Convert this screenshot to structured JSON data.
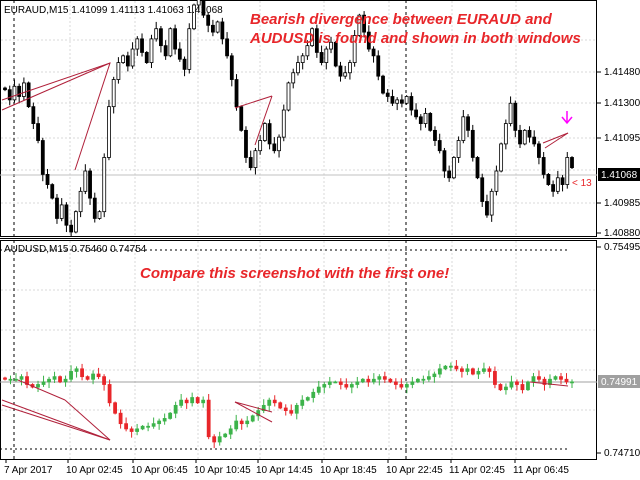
{
  "top_panel": {
    "symbol": "EURAUD,M15",
    "ohlc": "1.41099 1.41113 1.41063 1.41068",
    "annotation_lines": [
      "Bearish divergence between EURAUD and",
      "AUDUSD is found and shown in both windows"
    ],
    "price_labels": [
      "1.41480",
      "1.41300",
      "1.41095",
      "1.40985",
      "1.40880"
    ],
    "current_price": "1.41068",
    "small_label": "< 13",
    "arrow_color": "#ff00ff"
  },
  "bottom_panel": {
    "symbol": "AUDUSD,M15",
    "ohlc": "0.75460 0.74754",
    "annotation": "Compare this screenshot with the first one!",
    "price_labels": [
      "0.75495",
      "0.74710"
    ],
    "current_price": "0.74991"
  },
  "time_axis": [
    "7 Apr 2017",
    "10 Apr 02:45",
    "10 Apr 06:45",
    "10 Apr 10:45",
    "10 Apr 14:45",
    "10 Apr 18:45",
    "10 Apr 22:45",
    "11 Apr 02:45",
    "11 Apr 06:45"
  ],
  "colors": {
    "up_candle": "#3cb34a",
    "down_candle": "#e8262a",
    "divergence_line": "#b0203a",
    "annotation": "#e8262a"
  },
  "chart_data": [
    {
      "type": "candlestick",
      "title": "EURAUD,M15",
      "ylim": [
        1.4088,
        1.4155
      ],
      "close": [
        1.413,
        1.4127,
        1.4131,
        1.4128,
        1.4132,
        1.4125,
        1.412,
        1.4115,
        1.4105,
        1.4102,
        1.4098,
        1.4092,
        1.4096,
        1.409,
        1.4088,
        1.4094,
        1.41,
        1.4106,
        1.4098,
        1.4092,
        1.4094,
        1.411,
        1.4125,
        1.4133,
        1.4138,
        1.414,
        1.4137,
        1.4142,
        1.4145,
        1.4141,
        1.4138,
        1.4145,
        1.4148,
        1.4143,
        1.414,
        1.4148,
        1.4142,
        1.4139,
        1.4136,
        1.4148,
        1.4155,
        1.4162,
        1.4152,
        1.4149,
        1.4147,
        1.415,
        1.4145,
        1.414,
        1.4133,
        1.4125,
        1.4118,
        1.411,
        1.4107,
        1.4112,
        1.4115,
        1.412,
        1.4114,
        1.4112,
        1.4116,
        1.4124,
        1.4132,
        1.4135,
        1.4138,
        1.414,
        1.4143,
        1.4148,
        1.4141,
        1.4138,
        1.4142,
        1.4144,
        1.4137,
        1.4134,
        1.4135,
        1.4138,
        1.4146,
        1.4152,
        1.4147,
        1.4142,
        1.414,
        1.4134,
        1.4129,
        1.4128,
        1.4126,
        1.4127,
        1.4126,
        1.4128,
        1.4124,
        1.4122,
        1.412,
        1.4123,
        1.4118,
        1.4115,
        1.4112,
        1.4106,
        1.4104,
        1.411,
        1.4115,
        1.4122,
        1.4118,
        1.411,
        1.4104,
        1.4097,
        1.4093,
        1.41,
        1.4106,
        1.4114,
        1.412,
        1.4126,
        1.4118,
        1.4114,
        1.4118,
        1.4116,
        1.4114,
        1.411,
        1.4105,
        1.4102,
        1.41,
        1.4104,
        1.4102,
        1.411,
        1.4107
      ]
    },
    {
      "type": "candlestick",
      "title": "AUDUSD,M15",
      "ylim": [
        0.7471,
        0.75495
      ],
      "close": [
        0.75,
        0.75,
        0.75,
        0.7501,
        0.7498,
        0.7497,
        0.7498,
        0.7499,
        0.75,
        0.7501,
        0.7499,
        0.75,
        0.7503,
        0.7504,
        0.7501,
        0.75,
        0.7502,
        0.7501,
        0.7498,
        0.7491,
        0.7487,
        0.7483,
        0.7481,
        0.748,
        0.7481,
        0.7482,
        0.7482,
        0.7483,
        0.7484,
        0.7485,
        0.7487,
        0.749,
        0.7492,
        0.7491,
        0.7493,
        0.7491,
        0.7492,
        0.7478,
        0.7476,
        0.7478,
        0.7479,
        0.7481,
        0.7484,
        0.7483,
        0.7484,
        0.7486,
        0.7488,
        0.749,
        0.7492,
        0.7491,
        0.7489,
        0.7488,
        0.7487,
        0.749,
        0.7492,
        0.7493,
        0.7495,
        0.7497,
        0.7498,
        0.7499,
        0.7499,
        0.7498,
        0.7497,
        0.7498,
        0.7499,
        0.75,
        0.7499,
        0.75,
        0.7501,
        0.75,
        0.7499,
        0.7498,
        0.7497,
        0.7498,
        0.7499,
        0.75,
        0.75,
        0.7501,
        0.7502,
        0.7504,
        0.7505,
        0.7505,
        0.7504,
        0.7503,
        0.7504,
        0.7502,
        0.7503,
        0.7504,
        0.7503,
        0.7498,
        0.7496,
        0.7497,
        0.7499,
        0.7498,
        0.7496,
        0.7499,
        0.7501,
        0.75,
        0.7498,
        0.75,
        0.7501,
        0.75,
        0.7499,
        0.7499
      ]
    }
  ]
}
